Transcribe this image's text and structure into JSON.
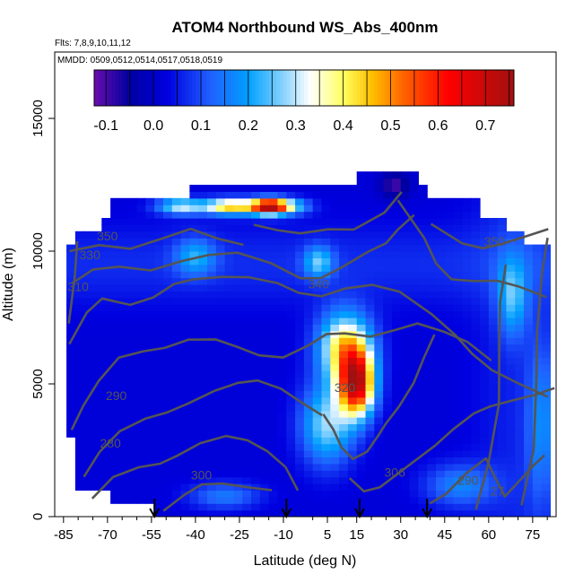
{
  "chart_data": {
    "type": "heatmap",
    "title": "ATOM4 Northbound WS_Abs_400nm",
    "flights_note": "Flts: 7,8,9,10,11,12",
    "dates_note": "MMDD: 0509,0512,0514,0517,0518,0519",
    "xlabel": "Latitude (deg N)",
    "ylabel": "Altitude (m)",
    "xlim": [
      -88,
      83
    ],
    "ylim": [
      0,
      17500
    ],
    "x_ticks": [
      -85,
      -70,
      -55,
      -40,
      -25,
      -10,
      5,
      15,
      30,
      45,
      60,
      75
    ],
    "x_minor_ticks": [
      -80,
      -75,
      -65,
      -60,
      -50,
      -45,
      -35,
      -30,
      -20,
      -15,
      0,
      10,
      20,
      25,
      35,
      40,
      50,
      55,
      65,
      70,
      80
    ],
    "y_ticks": [
      0,
      5000,
      10000,
      15000
    ],
    "colorbar": {
      "ticks": [
        -0.1,
        0.0,
        0.1,
        0.2,
        0.3,
        0.4,
        0.5,
        0.6,
        0.7
      ],
      "range": [
        -0.125,
        0.76
      ],
      "colors": [
        "#6a0dad",
        "#0000a0",
        "#0000e0",
        "#2060ff",
        "#00a0ff",
        "#80d0ff",
        "#ffffff",
        "#ffff60",
        "#ffc000",
        "#ff6000",
        "#ff0000",
        "#a01010"
      ],
      "color_positions": [
        -0.125,
        -0.05,
        0.03,
        0.12,
        0.2,
        0.27,
        0.33,
        0.4,
        0.46,
        0.53,
        0.62,
        0.76
      ]
    },
    "profile_markers_latitude": [
      -54,
      -9,
      16,
      39
    ],
    "field_features": [
      {
        "feature": "max",
        "lat": 15,
        "alt": 5000,
        "value": 0.65,
        "sig_lat": 6,
        "sig_alt": 1200
      },
      {
        "feature": "max",
        "lat": 11,
        "alt": 6400,
        "value": 0.42,
        "sig_lat": 9,
        "sig_alt": 1300
      },
      {
        "feature": "max",
        "lat": 5,
        "alt": 3500,
        "value": 0.28,
        "sig_lat": 9,
        "sig_alt": 1500
      },
      {
        "feature": "max",
        "lat": -15,
        "alt": 11700,
        "value": 0.66,
        "sig_lat": 6,
        "sig_alt": 300
      },
      {
        "feature": "max",
        "lat": -28,
        "alt": 11700,
        "value": 0.45,
        "sig_lat": 9,
        "sig_alt": 300
      },
      {
        "feature": "max",
        "lat": -45,
        "alt": 11700,
        "value": 0.3,
        "sig_lat": 8,
        "sig_alt": 300
      },
      {
        "feature": "max",
        "lat": -8,
        "alt": 11700,
        "value": 0.25,
        "sig_lat": 7,
        "sig_alt": 300
      },
      {
        "feature": "max",
        "lat": 2,
        "alt": 9600,
        "value": 0.22,
        "sig_lat": 5,
        "sig_alt": 600
      },
      {
        "feature": "max",
        "lat": -40,
        "alt": 9800,
        "value": 0.18,
        "sig_lat": 7,
        "sig_alt": 700
      },
      {
        "feature": "max",
        "lat": 68,
        "alt": 8300,
        "value": 0.2,
        "sig_lat": 5,
        "sig_alt": 1500
      },
      {
        "feature": "max",
        "lat": 78,
        "alt": 3500,
        "value": 0.15,
        "sig_lat": 5,
        "sig_alt": 3000
      },
      {
        "feature": "max",
        "lat": -30,
        "alt": 800,
        "value": 0.15,
        "sig_lat": 12,
        "sig_alt": 500
      },
      {
        "feature": "max",
        "lat": 50,
        "alt": 1200,
        "value": 0.16,
        "sig_lat": 12,
        "sig_alt": 800
      },
      {
        "feature": "min",
        "lat": 28,
        "alt": 12500,
        "value": -0.1,
        "sig_lat": 5,
        "sig_alt": 500
      }
    ],
    "contour_labels": [
      {
        "text": "350",
        "lat": -70,
        "alt": 10400
      },
      {
        "text": "330",
        "lat": -76,
        "alt": 9700
      },
      {
        "text": "310",
        "lat": -80,
        "alt": 8500
      },
      {
        "text": "340",
        "lat": 2,
        "alt": 8600
      },
      {
        "text": "350",
        "lat": 62,
        "alt": 10200
      },
      {
        "text": "290",
        "lat": -67,
        "alt": 4400
      },
      {
        "text": "280",
        "lat": -69,
        "alt": 2600
      },
      {
        "text": "300",
        "lat": -38,
        "alt": 1400
      },
      {
        "text": "320",
        "lat": 11,
        "alt": 4700
      },
      {
        "text": "306",
        "lat": 28,
        "alt": 1500
      },
      {
        "text": "290",
        "lat": 53,
        "alt": 1200
      },
      {
        "text": "27",
        "lat": 63,
        "alt": 800
      }
    ]
  }
}
